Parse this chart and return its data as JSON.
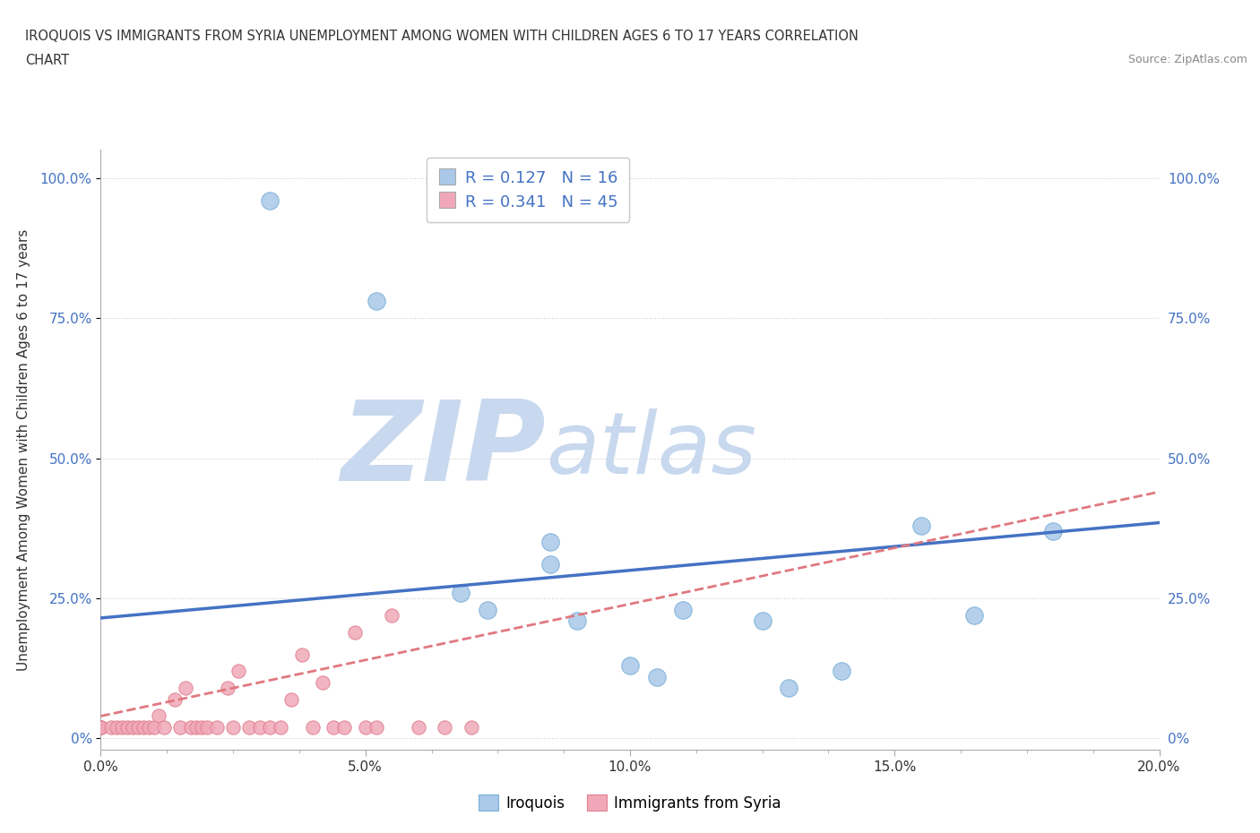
{
  "title_line1": "IROQUOIS VS IMMIGRANTS FROM SYRIA UNEMPLOYMENT AMONG WOMEN WITH CHILDREN AGES 6 TO 17 YEARS CORRELATION",
  "title_line2": "CHART",
  "source_text": "Source: ZipAtlas.com",
  "ylabel": "Unemployment Among Women with Children Ages 6 to 17 years",
  "xlim": [
    0.0,
    0.2
  ],
  "ylim": [
    -0.02,
    1.05
  ],
  "ytick_labels": [
    "0%",
    "25.0%",
    "50.0%",
    "75.0%",
    "100.0%"
  ],
  "ytick_values": [
    0.0,
    0.25,
    0.5,
    0.75,
    1.0
  ],
  "background_color": "#ffffff",
  "grid_color": "#cccccc",
  "watermark_zip": "ZIP",
  "watermark_atlas": "atlas",
  "watermark_color_zip": "#c8d8ee",
  "watermark_color_atlas": "#c8d8ee",
  "legend_R1": "R = 0.127",
  "legend_N1": "N = 16",
  "legend_R2": "R = 0.341",
  "legend_N2": "N = 45",
  "color_iroquois": "#aac8e8",
  "color_iroquois_edge": "#7ab0d8",
  "color_syria": "#f0a8b8",
  "color_syria_edge": "#e08090",
  "color_iroquois_line": "#4472c4",
  "color_syria_line": "#e07880",
  "color_label_blue": "#4472c4",
  "iroquois_x": [
    0.032,
    0.052,
    0.068,
    0.073,
    0.085,
    0.085,
    0.09,
    0.1,
    0.105,
    0.11,
    0.125,
    0.13,
    0.14,
    0.155,
    0.165,
    0.18
  ],
  "iroquois_y": [
    0.96,
    0.78,
    0.26,
    0.23,
    0.35,
    0.31,
    0.21,
    0.13,
    0.11,
    0.23,
    0.21,
    0.09,
    0.12,
    0.38,
    0.22,
    0.37
  ],
  "syria_x": [
    0.0,
    0.0,
    0.0,
    0.0,
    0.0,
    0.0,
    0.002,
    0.003,
    0.004,
    0.005,
    0.006,
    0.007,
    0.008,
    0.009,
    0.01,
    0.011,
    0.012,
    0.014,
    0.015,
    0.016,
    0.017,
    0.018,
    0.019,
    0.02,
    0.022,
    0.024,
    0.025,
    0.026,
    0.028,
    0.03,
    0.032,
    0.034,
    0.036,
    0.038,
    0.04,
    0.042,
    0.044,
    0.046,
    0.048,
    0.05,
    0.052,
    0.055,
    0.06,
    0.065,
    0.07
  ],
  "syria_y": [
    0.02,
    0.02,
    0.02,
    0.02,
    0.02,
    0.02,
    0.02,
    0.02,
    0.02,
    0.02,
    0.02,
    0.02,
    0.02,
    0.02,
    0.02,
    0.04,
    0.02,
    0.07,
    0.02,
    0.09,
    0.02,
    0.02,
    0.02,
    0.02,
    0.02,
    0.09,
    0.02,
    0.12,
    0.02,
    0.02,
    0.02,
    0.02,
    0.07,
    0.15,
    0.02,
    0.1,
    0.02,
    0.02,
    0.19,
    0.02,
    0.02,
    0.22,
    0.02,
    0.02,
    0.02
  ],
  "iroquois_trend_x": [
    0.0,
    0.2
  ],
  "iroquois_trend_y": [
    0.215,
    0.385
  ],
  "syria_trend_x": [
    0.0,
    0.2
  ],
  "syria_trend_y": [
    0.04,
    0.44
  ],
  "marker_size_iroquois": 14,
  "marker_size_syria": 11
}
